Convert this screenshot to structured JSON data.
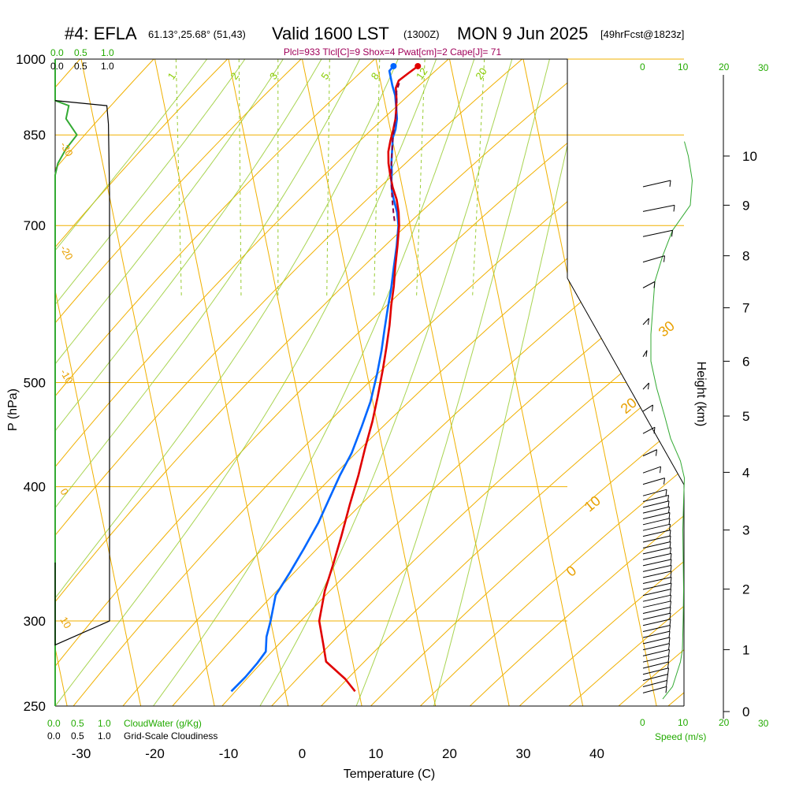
{
  "title": {
    "station": "#4: EFLA",
    "coords": "61.13°,25.68° (51,43)",
    "valid": "Valid 1600 LST",
    "zulu": "(1300Z)",
    "date": "MON 9 Jun 2025",
    "forecast": "[49hrFcst@1823z]"
  },
  "subtitle": "Plcl=933 Tlcl[C]=9 Shox=4 Pwat[cm]=2 Cape[J]= 71",
  "colors": {
    "temperature": "#e00000",
    "dewpoint": "#0066ff",
    "parcel": "#8b0040",
    "isotherm": "#f0b000",
    "mixing_ratio": "#99cc33",
    "wind_speed": "#33aa33",
    "cloud": "#000000"
  },
  "chart_data": {
    "type": "line",
    "xlabel": "Temperature (C)",
    "ylabel": "P (hPa)",
    "right_label": "Height (km)",
    "pressure_ticks": [
      "250",
      "300",
      "400",
      "500",
      "700",
      "850",
      "1000"
    ],
    "pressure_levels": [
      250,
      300,
      400,
      500,
      700,
      850,
      1000
    ],
    "temperature_ticks": [
      "-30",
      "-20",
      "-10",
      "0",
      "10",
      "20",
      "30",
      "40"
    ],
    "temperature_values": [
      -30,
      -20,
      -10,
      0,
      10,
      20,
      30,
      40
    ],
    "height_ticks": [
      "0",
      "1",
      "2",
      "3",
      "4",
      "5",
      "6",
      "7",
      "8",
      "9",
      "10"
    ],
    "height_values": [
      0,
      1,
      2,
      3,
      4,
      5,
      6,
      7,
      8,
      9,
      10
    ],
    "xlim": [
      -35,
      46
    ],
    "ylim": [
      1000,
      250
    ],
    "isotherm_labels": [
      "10",
      "0",
      "-10",
      "-20",
      "-30",
      "0",
      "10",
      "20",
      "30"
    ],
    "mixing_ratio_labels": [
      "1",
      "2",
      "3",
      "5",
      "8",
      "12",
      "20"
    ],
    "top_scale": {
      "cloud_water_ticks": [
        "0.0",
        "0.5",
        "1.0"
      ],
      "cloudiness_ticks": [
        "0.0",
        "0.5",
        "1.0"
      ],
      "speed_ticks": [
        "0",
        "10",
        "20",
        "30"
      ]
    },
    "bottom_scale": {
      "cloud_water_ticks": [
        "0.0",
        "0.5",
        "1.0"
      ],
      "cloud_water_label": "CloudWater (g/Kg)",
      "cloudiness_ticks": [
        "0.0",
        "0.5",
        "1.0"
      ],
      "cloudiness_label": "Grid-Scale Cloudiness",
      "speed_ticks": [
        "0",
        "10",
        "20",
        "30"
      ],
      "speed_label": "Speed (m/s)"
    },
    "series": [
      {
        "name": "temperature",
        "points": [
          [
            15.5,
            985
          ],
          [
            14.0,
            970
          ],
          [
            12.5,
            955
          ],
          [
            11.9,
            940
          ],
          [
            11.7,
            920
          ],
          [
            11.4,
            900
          ],
          [
            11.0,
            880
          ],
          [
            10.4,
            860
          ],
          [
            9.7,
            840
          ],
          [
            9.1,
            820
          ],
          [
            8.8,
            800
          ],
          [
            8.7,
            780
          ],
          [
            8.7,
            760
          ],
          [
            8.9,
            740
          ],
          [
            8.8,
            720
          ],
          [
            8.5,
            700
          ],
          [
            7.7,
            670
          ],
          [
            6.8,
            640
          ],
          [
            6.1,
            615
          ],
          [
            5.2,
            590
          ],
          [
            4.4,
            565
          ],
          [
            3.4,
            540
          ],
          [
            2.3,
            515
          ],
          [
            0.8,
            485
          ],
          [
            -0.6,
            460
          ],
          [
            -2.3,
            435
          ],
          [
            -4.0,
            410
          ],
          [
            -6.0,
            385
          ],
          [
            -8.0,
            360
          ],
          [
            -9.8,
            340
          ],
          [
            -11.8,
            320
          ],
          [
            -13.4,
            300
          ],
          [
            -13.5,
            285
          ],
          [
            -13.6,
            275
          ],
          [
            -11.5,
            265
          ],
          [
            -10.5,
            258
          ]
        ]
      },
      {
        "name": "dewpoint",
        "points": [
          [
            12.2,
            985
          ],
          [
            11.5,
            975
          ],
          [
            11.5,
            960
          ],
          [
            11.5,
            945
          ],
          [
            11.6,
            925
          ],
          [
            11.4,
            900
          ],
          [
            11.2,
            880
          ],
          [
            10.7,
            860
          ],
          [
            10.1,
            845
          ],
          [
            9.8,
            830
          ],
          [
            9.5,
            815
          ],
          [
            9.2,
            800
          ],
          [
            9.0,
            785
          ],
          [
            8.7,
            770
          ],
          [
            8.5,
            755
          ],
          [
            8.5,
            740
          ],
          [
            8.6,
            720
          ],
          [
            8.4,
            700
          ],
          [
            7.6,
            670
          ],
          [
            6.6,
            640
          ],
          [
            5.6,
            610
          ],
          [
            4.6,
            585
          ],
          [
            3.6,
            560
          ],
          [
            2.6,
            535
          ],
          [
            1.4,
            510
          ],
          [
            -0.3,
            480
          ],
          [
            -2.2,
            455
          ],
          [
            -4.3,
            430
          ],
          [
            -6.5,
            410
          ],
          [
            -8.6,
            390
          ],
          [
            -10.8,
            370
          ],
          [
            -13.5,
            350
          ],
          [
            -16.0,
            333
          ],
          [
            -18.6,
            317
          ],
          [
            -20.0,
            300
          ],
          [
            -21.0,
            290
          ],
          [
            -21.5,
            281
          ],
          [
            -23.0,
            274
          ],
          [
            -25.0,
            266
          ],
          [
            -27.3,
            258
          ]
        ]
      },
      {
        "name": "parcel",
        "points": [
          [
            12.5,
            950
          ],
          [
            11.9,
            933
          ],
          [
            11.6,
            910
          ],
          [
            11.1,
            885
          ],
          [
            10.6,
            865
          ],
          [
            10.0,
            840
          ],
          [
            9.5,
            815
          ],
          [
            9.0,
            790
          ],
          [
            8.6,
            765
          ],
          [
            8.3,
            740
          ],
          [
            8.1,
            720
          ],
          [
            8.0,
            705
          ]
        ]
      }
    ],
    "surface_points": [
      {
        "name": "temperature",
        "t": 15.5,
        "p": 985
      },
      {
        "name": "dewpoint",
        "t": 12.2,
        "p": 985
      }
    ],
    "wind_barbs": [
      {
        "h": 0.4,
        "speed": 6.0
      },
      {
        "h": 0.5,
        "speed": 6.1
      },
      {
        "h": 0.6,
        "speed": 6.3
      },
      {
        "h": 0.7,
        "speed": 6.5
      },
      {
        "h": 0.8,
        "speed": 6.5
      },
      {
        "h": 0.9,
        "speed": 6.6
      },
      {
        "h": 1.0,
        "speed": 6.7
      },
      {
        "h": 1.1,
        "speed": 6.7
      },
      {
        "h": 1.2,
        "speed": 6.8
      },
      {
        "h": 1.3,
        "speed": 6.8
      },
      {
        "h": 1.4,
        "speed": 6.9
      },
      {
        "h": 1.5,
        "speed": 7.0
      },
      {
        "h": 1.6,
        "speed": 7.0
      },
      {
        "h": 1.7,
        "speed": 7.0
      },
      {
        "h": 1.8,
        "speed": 7.1
      },
      {
        "h": 1.9,
        "speed": 7.1
      },
      {
        "h": 2.0,
        "speed": 7.1
      },
      {
        "h": 2.1,
        "speed": 7.2
      },
      {
        "h": 2.2,
        "speed": 7.2
      },
      {
        "h": 2.3,
        "speed": 7.2
      },
      {
        "h": 2.4,
        "speed": 7.2
      },
      {
        "h": 2.5,
        "speed": 7.2
      },
      {
        "h": 2.6,
        "speed": 7.2
      },
      {
        "h": 2.7,
        "speed": 7.1
      },
      {
        "h": 2.8,
        "speed": 7.0
      },
      {
        "h": 2.9,
        "speed": 7.0
      },
      {
        "h": 3.0,
        "speed": 7.0
      },
      {
        "h": 3.1,
        "speed": 6.9
      },
      {
        "h": 3.2,
        "speed": 6.8
      },
      {
        "h": 3.3,
        "speed": 6.8
      },
      {
        "h": 3.4,
        "speed": 6.7
      },
      {
        "h": 3.5,
        "speed": 6.6
      },
      {
        "h": 3.6,
        "speed": 6.5
      },
      {
        "h": 3.7,
        "speed": 6.0
      },
      {
        "h": 3.9,
        "speed": 5.5
      },
      {
        "h": 4.1,
        "speed": 4.5
      },
      {
        "h": 4.4,
        "speed": 3.5
      },
      {
        "h": 4.8,
        "speed": 3.0
      },
      {
        "h": 5.2,
        "speed": 2.5
      },
      {
        "h": 5.6,
        "speed": 1.5
      },
      {
        "h": 6.2,
        "speed": 1.0
      },
      {
        "h": 6.8,
        "speed": 1.5
      },
      {
        "h": 7.5,
        "speed": 3.0
      },
      {
        "h": 8.0,
        "speed": 5.5
      },
      {
        "h": 8.5,
        "speed": 7.5
      },
      {
        "h": 9.0,
        "speed": 8.0
      },
      {
        "h": 9.5,
        "speed": 7.0
      }
    ],
    "wind_speed_profile": [
      [
        0.2,
        5.0
      ],
      [
        0.4,
        7.5
      ],
      [
        0.6,
        8.5
      ],
      [
        0.8,
        9.5
      ],
      [
        1.0,
        10.0
      ],
      [
        1.5,
        10.2
      ],
      [
        2.0,
        10.3
      ],
      [
        2.5,
        10.2
      ],
      [
        3.0,
        10.1
      ],
      [
        3.5,
        10.3
      ],
      [
        3.9,
        10.5
      ],
      [
        4.2,
        9.5
      ],
      [
        4.6,
        7.0
      ],
      [
        5.0,
        5.5
      ],
      [
        5.5,
        3.5
      ],
      [
        6.0,
        2.0
      ],
      [
        6.5,
        2.0
      ],
      [
        7.0,
        2.5
      ],
      [
        7.5,
        3.0
      ],
      [
        8.0,
        5.0
      ],
      [
        8.5,
        7.5
      ],
      [
        9.0,
        12.0
      ],
      [
        9.5,
        12.5
      ],
      [
        10.0,
        11.5
      ],
      [
        10.3,
        10.5
      ]
    ],
    "cloud_water_profile": [
      [
        1000,
        0.0
      ],
      [
        915,
        0.0
      ],
      [
        905,
        0.25
      ],
      [
        880,
        0.2
      ],
      [
        850,
        0.4
      ],
      [
        825,
        0.2
      ],
      [
        800,
        0.05
      ],
      [
        780,
        0.0
      ],
      [
        250,
        0.0
      ]
    ],
    "cloudiness_profile": [
      [
        915,
        0.0
      ],
      [
        905,
        0.95
      ],
      [
        870,
        0.98
      ],
      [
        750,
        1.0
      ],
      [
        300,
        1.0
      ],
      [
        285,
        0.0
      ],
      [
        340,
        0.0
      ]
    ]
  }
}
